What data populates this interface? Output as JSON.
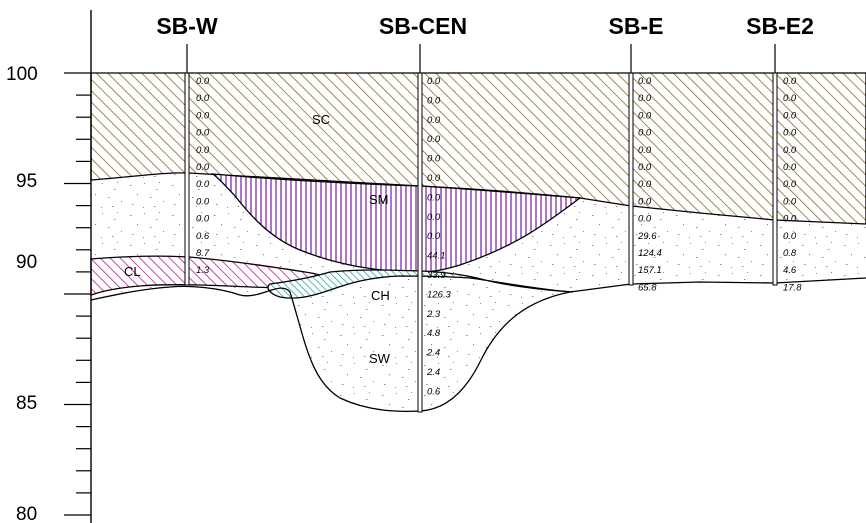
{
  "y_axis": {
    "ticks": [
      "100",
      "95",
      "90",
      "85",
      "80"
    ]
  },
  "borings": [
    {
      "name": "SB-W",
      "readings": [
        "0.0",
        "0.0",
        "0.0",
        "0.0",
        "0.0",
        "0.0",
        "0.0",
        "0.0",
        "0.0",
        "0.6",
        "8.7",
        "1.3"
      ]
    },
    {
      "name": "SB-CEN",
      "readings": [
        "0.0",
        "0.0",
        "0.0",
        "0.0",
        "0.0",
        "0.0",
        "0.0",
        "0.0",
        "0.0",
        "44.1",
        "33.9",
        "126.3",
        "2.3",
        "4.8",
        "2.4",
        "2.4",
        "0.6"
      ]
    },
    {
      "name": "SB-E",
      "readings": [
        "0.0",
        "0.0",
        "0.0",
        "0.0",
        "0.0",
        "0.0",
        "0.0",
        "0.0",
        "0.0",
        "29.6",
        "124.4",
        "157.1",
        "65.8"
      ]
    },
    {
      "name": "SB-E2",
      "readings": [
        "0.0",
        "0.0",
        "0.0",
        "0.0",
        "0.0",
        "0.0",
        "0.0",
        "0.0",
        "0.0",
        "0.0",
        "0.8",
        "4.6",
        "17.8"
      ]
    }
  ],
  "soil_units": [
    {
      "code": "SC"
    },
    {
      "code": "SM"
    },
    {
      "code": "CL"
    },
    {
      "code": "CH"
    },
    {
      "code": "SW"
    }
  ],
  "colors": {
    "sc_hatch": "#8b6a2b",
    "sm_hatch": "#7a18a8",
    "cl_hatch": "#c0189a",
    "ch_hatch": "#20a0a0",
    "speckle": "#888888"
  }
}
